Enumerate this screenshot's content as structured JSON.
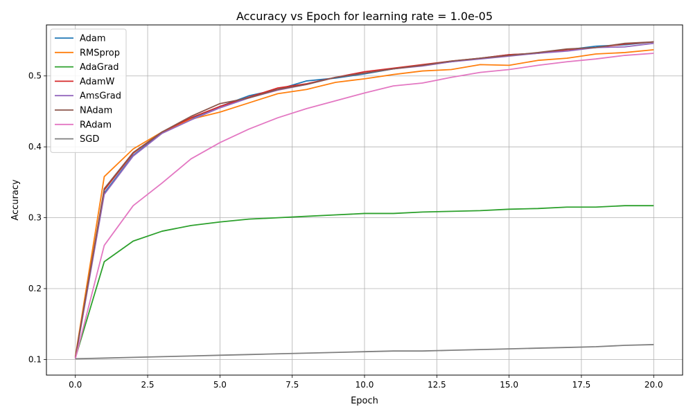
{
  "chart_data": {
    "type": "line",
    "title": "Accuracy vs Epoch for learning rate = 1.0e-05",
    "xlabel": "Epoch",
    "ylabel": "Accuracy",
    "xlim": [
      -1,
      21
    ],
    "ylim": [
      0.078,
      0.572
    ],
    "xticks": [
      0,
      2.5,
      5,
      7.5,
      10,
      12.5,
      15,
      17.5,
      20
    ],
    "xtick_labels": [
      "0.0",
      "2.5",
      "5.0",
      "7.5",
      "10.0",
      "12.5",
      "15.0",
      "17.5",
      "20.0"
    ],
    "yticks": [
      0.1,
      0.2,
      0.3,
      0.4,
      0.5
    ],
    "ytick_labels": [
      "0.1",
      "0.2",
      "0.3",
      "0.4",
      "0.5"
    ],
    "grid": true,
    "legend_position": "top-left",
    "x": [
      0,
      1,
      2,
      3,
      4,
      5,
      6,
      7,
      8,
      9,
      10,
      11,
      12,
      13,
      14,
      15,
      16,
      17,
      18,
      19,
      20
    ],
    "series": [
      {
        "name": "Adam",
        "color": "#1f77b4",
        "values": [
          0.102,
          0.335,
          0.388,
          0.42,
          0.44,
          0.457,
          0.472,
          0.481,
          0.493,
          0.497,
          0.503,
          0.51,
          0.515,
          0.52,
          0.525,
          0.53,
          0.532,
          0.537,
          0.542,
          0.544,
          0.548
        ]
      },
      {
        "name": "RMSprop",
        "color": "#ff7f0e",
        "values": [
          0.104,
          0.358,
          0.397,
          0.421,
          0.439,
          0.449,
          0.462,
          0.475,
          0.481,
          0.491,
          0.496,
          0.502,
          0.507,
          0.509,
          0.516,
          0.515,
          0.522,
          0.525,
          0.531,
          0.533,
          0.537
        ]
      },
      {
        "name": "AdaGrad",
        "color": "#2ca02c",
        "values": [
          0.102,
          0.238,
          0.267,
          0.281,
          0.289,
          0.294,
          0.298,
          0.3,
          0.302,
          0.304,
          0.306,
          0.306,
          0.308,
          0.309,
          0.31,
          0.312,
          0.313,
          0.315,
          0.315,
          0.317,
          0.317
        ]
      },
      {
        "name": "AdamW",
        "color": "#d62728",
        "values": [
          0.103,
          0.339,
          0.391,
          0.421,
          0.441,
          0.457,
          0.47,
          0.483,
          0.489,
          0.498,
          0.506,
          0.511,
          0.516,
          0.521,
          0.525,
          0.53,
          0.532,
          0.537,
          0.54,
          0.545,
          0.548
        ]
      },
      {
        "name": "AmsGrad",
        "color": "#9467bd",
        "values": [
          0.101,
          0.333,
          0.387,
          0.419,
          0.438,
          0.455,
          0.469,
          0.48,
          0.488,
          0.498,
          0.504,
          0.51,
          0.514,
          0.52,
          0.524,
          0.528,
          0.532,
          0.535,
          0.54,
          0.541,
          0.546
        ]
      },
      {
        "name": "NAdam",
        "color": "#8c564b",
        "values": [
          0.103,
          0.341,
          0.392,
          0.421,
          0.443,
          0.461,
          0.469,
          0.481,
          0.488,
          0.498,
          0.504,
          0.51,
          0.515,
          0.521,
          0.525,
          0.529,
          0.533,
          0.538,
          0.54,
          0.546,
          0.548
        ]
      },
      {
        "name": "RAdam",
        "color": "#e377c2",
        "values": [
          0.101,
          0.261,
          0.317,
          0.349,
          0.383,
          0.406,
          0.425,
          0.441,
          0.454,
          0.465,
          0.476,
          0.486,
          0.49,
          0.498,
          0.505,
          0.509,
          0.515,
          0.52,
          0.524,
          0.529,
          0.532
        ]
      },
      {
        "name": "SGD",
        "color": "#7f7f7f",
        "values": [
          0.101,
          0.102,
          0.103,
          0.104,
          0.105,
          0.106,
          0.107,
          0.108,
          0.109,
          0.11,
          0.111,
          0.112,
          0.112,
          0.113,
          0.114,
          0.115,
          0.116,
          0.117,
          0.118,
          0.12,
          0.121
        ]
      }
    ]
  }
}
